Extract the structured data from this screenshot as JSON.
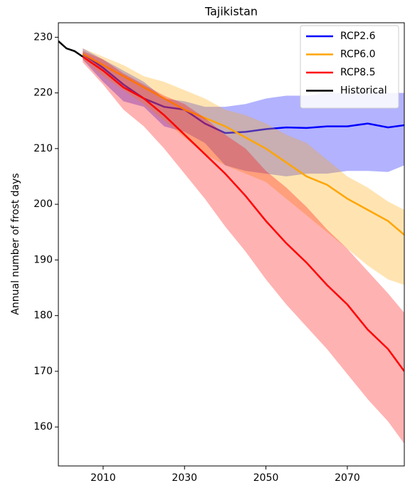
{
  "chart_data": {
    "type": "line",
    "title": "Tajikistan",
    "y_label": "Annual number of frost days",
    "xlim": [
      1999,
      2084
    ],
    "ylim": [
      153,
      232.6
    ],
    "xticks": [
      2010,
      2030,
      2050,
      2070
    ],
    "yticks": [
      160,
      170,
      180,
      190,
      200,
      210,
      220,
      230
    ],
    "legend": "upper right",
    "series": [
      {
        "name": "RCP2.6",
        "color": "#0000ff",
        "x": [
          2005,
          2010,
          2015,
          2020,
          2025,
          2030,
          2035,
          2040,
          2045,
          2050,
          2055,
          2060,
          2065,
          2070,
          2075,
          2080,
          2084
        ],
        "values": [
          227,
          224.5,
          221.5,
          219,
          217.5,
          217,
          214.5,
          212.8,
          213,
          213.5,
          213.8,
          213.7,
          214,
          214,
          214.5,
          213.8,
          214.2
        ],
        "lower": [
          226,
          222,
          218.5,
          217.5,
          214,
          213,
          211,
          207,
          206,
          205.5,
          205,
          205.5,
          205.5,
          206,
          206,
          205.8,
          207
        ],
        "upper": [
          228,
          226,
          224,
          222,
          219,
          218.5,
          217.5,
          217.5,
          218,
          219,
          219.5,
          219.5,
          220,
          220,
          220.5,
          220,
          220
        ]
      },
      {
        "name": "RCP6.0",
        "color": "#ffa500",
        "x": [
          2005,
          2010,
          2015,
          2020,
          2025,
          2030,
          2035,
          2040,
          2045,
          2050,
          2055,
          2060,
          2065,
          2070,
          2075,
          2080,
          2084
        ],
        "values": [
          227,
          225,
          223,
          221,
          219,
          217,
          215.5,
          214,
          212,
          210,
          207.5,
          205,
          203.5,
          201,
          199,
          197,
          194.5
        ],
        "lower": [
          226,
          223,
          220.5,
          218,
          215,
          212,
          209,
          207,
          205.5,
          204,
          201,
          198,
          195,
          192,
          189,
          186.5,
          185.5
        ],
        "upper": [
          228,
          226.5,
          225,
          223,
          222,
          220.5,
          219,
          217,
          216,
          214.5,
          212.5,
          211,
          208,
          205,
          203,
          200.5,
          199
        ]
      },
      {
        "name": "RCP8.5",
        "color": "#ff0000",
        "x": [
          2005,
          2010,
          2015,
          2020,
          2025,
          2030,
          2035,
          2040,
          2045,
          2050,
          2055,
          2060,
          2065,
          2070,
          2075,
          2080,
          2084
        ],
        "values": [
          226.5,
          224,
          221,
          219,
          216,
          212.5,
          209,
          205.5,
          201.5,
          197,
          193,
          189.5,
          185.5,
          182,
          177.5,
          174,
          170
        ],
        "lower": [
          225.5,
          221.5,
          217,
          214,
          210,
          205.5,
          201,
          196,
          191.5,
          186.5,
          182,
          178,
          174,
          169.5,
          165,
          161,
          157
        ],
        "upper": [
          227.5,
          226,
          223.5,
          221.5,
          219.5,
          218,
          215.5,
          212.5,
          210,
          206,
          203,
          199.5,
          195.5,
          192,
          188,
          184,
          180.5
        ]
      },
      {
        "name": "Historical",
        "color": "#000000",
        "x": [
          1999,
          2001,
          2003,
          2005
        ],
        "values": [
          229.3,
          228,
          227.5,
          226.5
        ]
      }
    ]
  }
}
